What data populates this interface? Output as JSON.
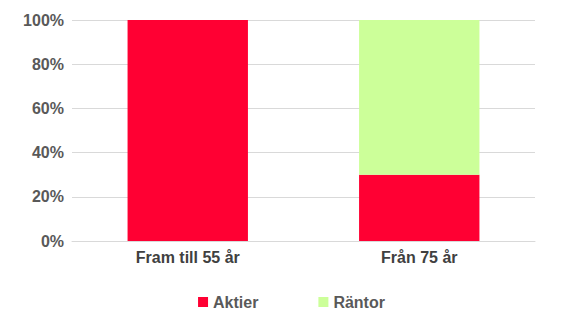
{
  "chart_data": {
    "type": "bar",
    "categories": [
      "Fram till 55 år",
      "Från 75 år"
    ],
    "series": [
      {
        "name": "Aktier",
        "color": "#ff0033",
        "values": [
          100,
          30
        ]
      },
      {
        "name": "Räntor",
        "color": "#ccff99",
        "values": [
          0,
          70
        ]
      }
    ],
    "stacked": true,
    "ylim": [
      0,
      100
    ],
    "yticks": [
      {
        "value": 0,
        "label": "0%"
      },
      {
        "value": 20,
        "label": "20%"
      },
      {
        "value": 40,
        "label": "40%"
      },
      {
        "value": 60,
        "label": "60%"
      },
      {
        "value": 80,
        "label": "80%"
      },
      {
        "value": 100,
        "label": "100%"
      }
    ],
    "grid": true,
    "legend": "bottom"
  }
}
